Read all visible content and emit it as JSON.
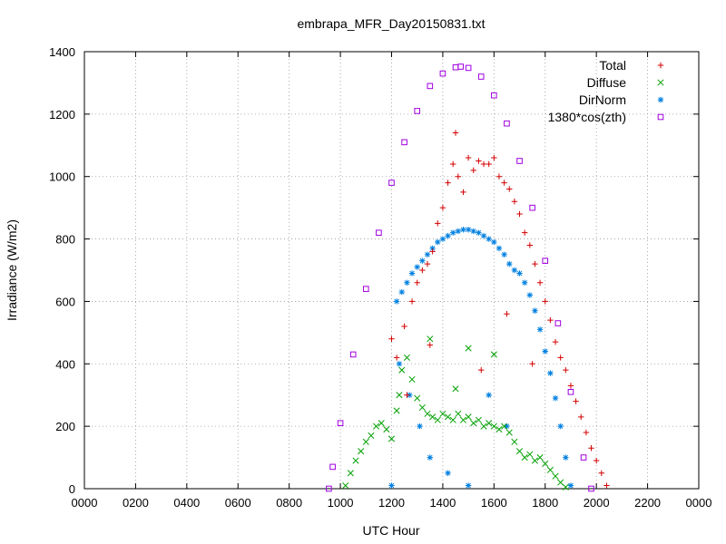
{
  "chart_data": {
    "type": "scatter",
    "title": "embrapa_MFR_Day20150831.txt",
    "xlabel": "UTC Hour",
    "ylabel": "Irradiance (W/m2)",
    "xlim": [
      0,
      24
    ],
    "ylim": [
      0,
      1400
    ],
    "x_ticks": [
      "0000",
      "0200",
      "0400",
      "0600",
      "0800",
      "1000",
      "1200",
      "1400",
      "1600",
      "1800",
      "2000",
      "2200",
      "0000"
    ],
    "y_ticks": [
      "0",
      "200",
      "400",
      "600",
      "800",
      "1000",
      "1200",
      "1400"
    ],
    "grid": true,
    "legend_position": "top-right",
    "series": [
      {
        "name": "Total",
        "marker": "+",
        "color": "#d40000",
        "points": [
          [
            12.0,
            480
          ],
          [
            12.2,
            420
          ],
          [
            12.5,
            520
          ],
          [
            12.8,
            600
          ],
          [
            13.0,
            660
          ],
          [
            13.2,
            700
          ],
          [
            13.4,
            720
          ],
          [
            13.6,
            760
          ],
          [
            13.8,
            850
          ],
          [
            14.0,
            900
          ],
          [
            14.2,
            980
          ],
          [
            14.4,
            1040
          ],
          [
            14.6,
            1000
          ],
          [
            14.8,
            950
          ],
          [
            15.0,
            1060
          ],
          [
            15.2,
            1020
          ],
          [
            15.4,
            1050
          ],
          [
            15.6,
            1040
          ],
          [
            15.8,
            1040
          ],
          [
            16.0,
            1060
          ],
          [
            16.2,
            1000
          ],
          [
            16.4,
            980
          ],
          [
            16.6,
            960
          ],
          [
            16.8,
            920
          ],
          [
            17.0,
            880
          ],
          [
            17.2,
            820
          ],
          [
            17.4,
            780
          ],
          [
            17.6,
            720
          ],
          [
            17.8,
            660
          ],
          [
            18.0,
            600
          ],
          [
            18.2,
            540
          ],
          [
            18.4,
            470
          ],
          [
            18.6,
            420
          ],
          [
            18.8,
            380
          ],
          [
            19.0,
            330
          ],
          [
            19.2,
            280
          ],
          [
            19.4,
            230
          ],
          [
            19.6,
            180
          ],
          [
            19.8,
            130
          ],
          [
            20.0,
            90
          ],
          [
            20.2,
            50
          ],
          [
            20.4,
            10
          ],
          [
            14.5,
            1140
          ],
          [
            13.5,
            460
          ],
          [
            15.5,
            380
          ],
          [
            12.6,
            300
          ],
          [
            16.5,
            560
          ],
          [
            17.5,
            400
          ]
        ]
      },
      {
        "name": "Diffuse",
        "marker": "x",
        "color": "#00a000",
        "points": [
          [
            10.2,
            10
          ],
          [
            10.4,
            50
          ],
          [
            10.6,
            90
          ],
          [
            10.8,
            120
          ],
          [
            11.0,
            150
          ],
          [
            11.2,
            170
          ],
          [
            11.4,
            200
          ],
          [
            11.6,
            210
          ],
          [
            11.8,
            190
          ],
          [
            12.0,
            160
          ],
          [
            12.2,
            250
          ],
          [
            12.4,
            380
          ],
          [
            12.6,
            420
          ],
          [
            12.8,
            350
          ],
          [
            13.0,
            290
          ],
          [
            13.2,
            260
          ],
          [
            13.4,
            240
          ],
          [
            13.6,
            230
          ],
          [
            13.8,
            220
          ],
          [
            14.0,
            240
          ],
          [
            14.2,
            230
          ],
          [
            14.4,
            220
          ],
          [
            14.6,
            240
          ],
          [
            14.8,
            220
          ],
          [
            15.0,
            230
          ],
          [
            15.2,
            210
          ],
          [
            15.4,
            220
          ],
          [
            15.6,
            200
          ],
          [
            15.8,
            210
          ],
          [
            16.0,
            200
          ],
          [
            16.2,
            190
          ],
          [
            16.4,
            200
          ],
          [
            16.6,
            180
          ],
          [
            16.8,
            150
          ],
          [
            17.0,
            120
          ],
          [
            17.2,
            100
          ],
          [
            17.4,
            110
          ],
          [
            17.6,
            90
          ],
          [
            17.8,
            100
          ],
          [
            18.0,
            80
          ],
          [
            18.2,
            60
          ],
          [
            18.4,
            40
          ],
          [
            18.6,
            20
          ],
          [
            18.8,
            5
          ],
          [
            13.5,
            480
          ],
          [
            15.0,
            450
          ],
          [
            16.0,
            430
          ],
          [
            12.3,
            300
          ],
          [
            14.5,
            320
          ]
        ]
      },
      {
        "name": "DirNorm",
        "marker": "*",
        "color": "#0080e0",
        "points": [
          [
            12.2,
            600
          ],
          [
            12.4,
            630
          ],
          [
            12.6,
            660
          ],
          [
            12.8,
            690
          ],
          [
            13.0,
            710
          ],
          [
            13.2,
            730
          ],
          [
            13.4,
            750
          ],
          [
            13.6,
            770
          ],
          [
            13.8,
            790
          ],
          [
            14.0,
            800
          ],
          [
            14.2,
            810
          ],
          [
            14.4,
            820
          ],
          [
            14.6,
            825
          ],
          [
            14.8,
            830
          ],
          [
            15.0,
            830
          ],
          [
            15.2,
            825
          ],
          [
            15.4,
            820
          ],
          [
            15.6,
            810
          ],
          [
            15.8,
            800
          ],
          [
            16.0,
            790
          ],
          [
            16.2,
            770
          ],
          [
            16.4,
            750
          ],
          [
            16.6,
            720
          ],
          [
            16.8,
            700
          ],
          [
            17.0,
            690
          ],
          [
            17.2,
            660
          ],
          [
            17.4,
            620
          ],
          [
            17.6,
            570
          ],
          [
            17.8,
            510
          ],
          [
            18.0,
            440
          ],
          [
            18.2,
            370
          ],
          [
            18.4,
            290
          ],
          [
            18.6,
            200
          ],
          [
            18.8,
            100
          ],
          [
            19.0,
            10
          ],
          [
            12.3,
            400
          ],
          [
            12.7,
            300
          ],
          [
            13.1,
            200
          ],
          [
            13.5,
            100
          ],
          [
            14.2,
            50
          ],
          [
            15.0,
            10
          ],
          [
            15.8,
            300
          ],
          [
            16.5,
            200
          ],
          [
            12.0,
            10
          ]
        ]
      },
      {
        "name": "1380*cos(zth)",
        "marker": "square",
        "color": "#a000e0",
        "points": [
          [
            9.55,
            0
          ],
          [
            9.7,
            70
          ],
          [
            10.0,
            210
          ],
          [
            10.5,
            430
          ],
          [
            11.0,
            640
          ],
          [
            11.5,
            820
          ],
          [
            12.0,
            980
          ],
          [
            12.5,
            1110
          ],
          [
            13.0,
            1210
          ],
          [
            13.5,
            1290
          ],
          [
            14.0,
            1330
          ],
          [
            14.5,
            1350
          ],
          [
            14.7,
            1352
          ],
          [
            15.0,
            1348
          ],
          [
            15.5,
            1320
          ],
          [
            16.0,
            1260
          ],
          [
            16.5,
            1170
          ],
          [
            17.0,
            1050
          ],
          [
            17.5,
            900
          ],
          [
            18.0,
            730
          ],
          [
            18.5,
            530
          ],
          [
            19.0,
            310
          ],
          [
            19.5,
            100
          ],
          [
            19.8,
            0
          ]
        ]
      }
    ]
  }
}
